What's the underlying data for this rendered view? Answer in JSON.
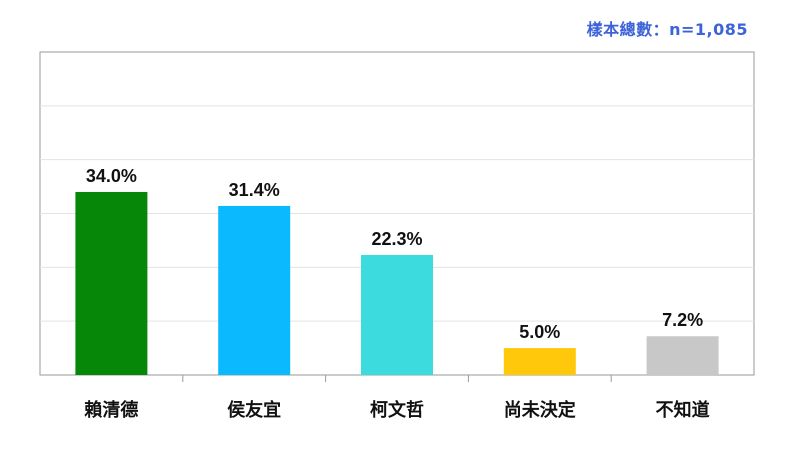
{
  "sample_note": "樣本總數：n=1,085",
  "chart_data": {
    "type": "bar",
    "categories": [
      "賴清德",
      "侯友宜",
      "柯文哲",
      "尚未決定",
      "不知道"
    ],
    "values": [
      34.0,
      31.4,
      22.3,
      5.0,
      7.2
    ],
    "value_labels": [
      "34.0%",
      "31.4%",
      "22.3%",
      "5.0%",
      "7.2%"
    ],
    "colors": [
      "#078707",
      "#0bb9ff",
      "#3cdbdd",
      "#ffc80a",
      "#c8c8c8"
    ],
    "ylim": [
      0,
      60
    ],
    "grid": true,
    "gridline_step": 10,
    "title": "",
    "xlabel": "",
    "ylabel": ""
  }
}
